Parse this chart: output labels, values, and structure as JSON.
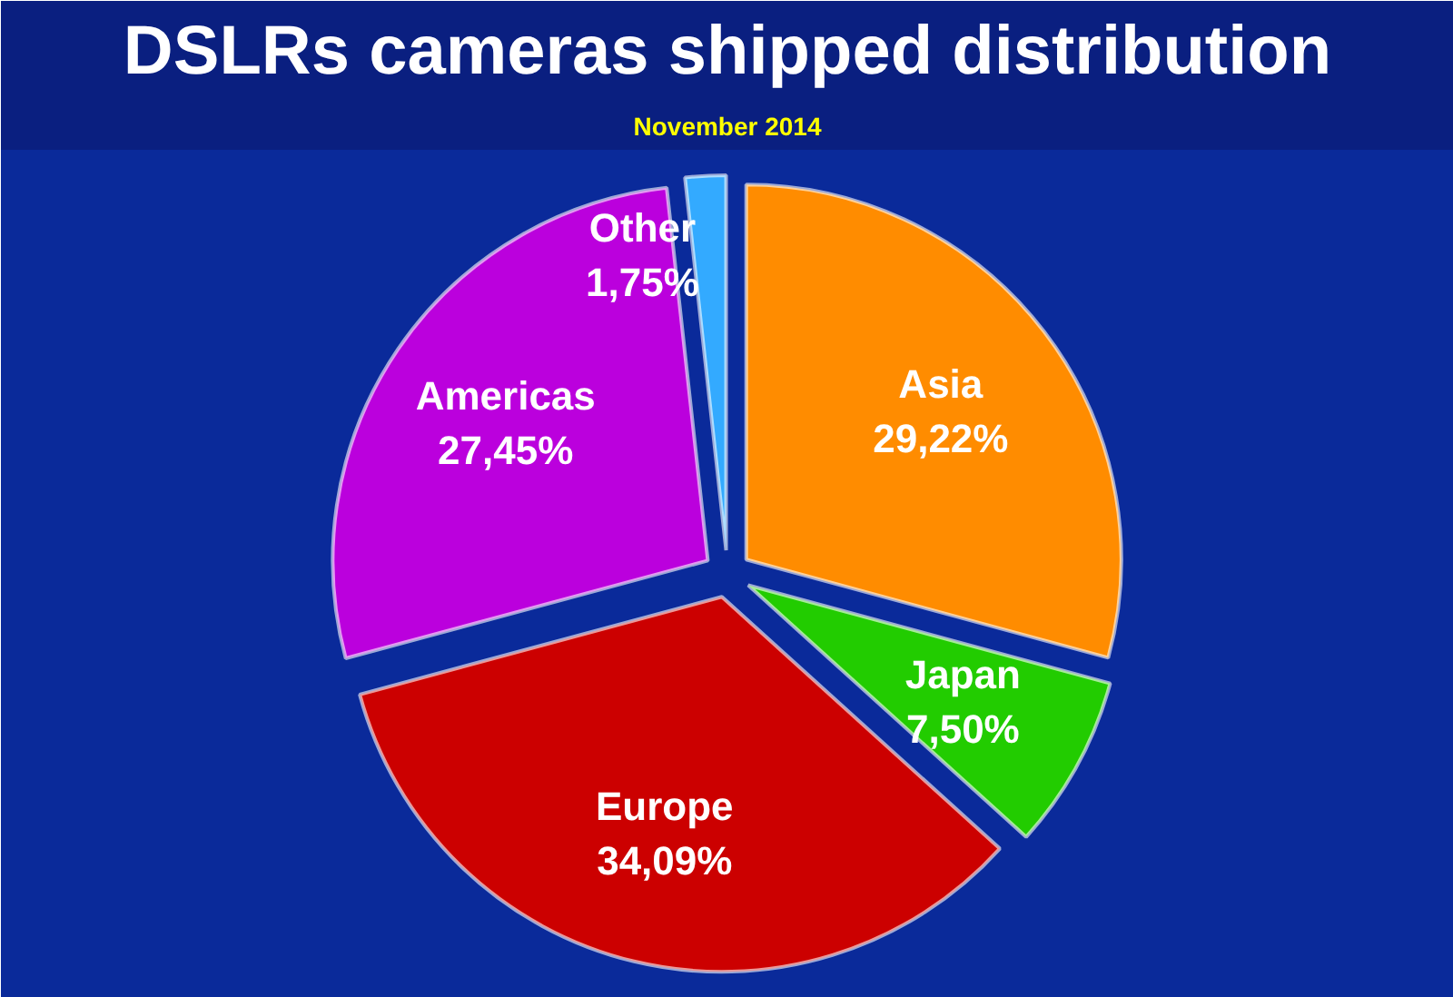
{
  "chart_data": {
    "type": "pie",
    "title": "DSLRs cameras shipped distribution",
    "subtitle": "November 2014",
    "categories": [
      "Asia",
      "Japan",
      "Europe",
      "Americas",
      "Other"
    ],
    "values": [
      29.22,
      7.5,
      34.09,
      27.45,
      1.75
    ],
    "value_labels": [
      "29,22%",
      "7,50%",
      "34,09%",
      "27,45%",
      "1,75%"
    ],
    "colors": [
      "#ff8c00",
      "#22cc00",
      "#cc0000",
      "#bb00dd",
      "#33aaff"
    ]
  }
}
